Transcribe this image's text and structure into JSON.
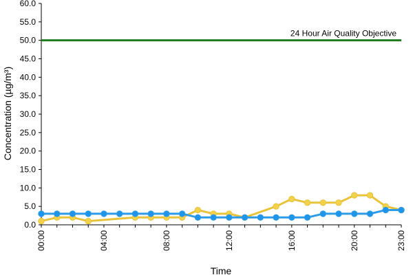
{
  "chart_data": {
    "type": "line",
    "title": "",
    "xlabel": "Time",
    "ylabel": "Concentration (µg/m³)",
    "ylim": [
      0,
      60
    ],
    "y_ticks": [
      "0.0",
      "5.0",
      "10.0",
      "15.0",
      "20.0",
      "25.0",
      "30.0",
      "35.0",
      "40.0",
      "45.0",
      "50.0",
      "55.0",
      "60.0"
    ],
    "x_ticks": [
      "00:00",
      "04:00",
      "08:00",
      "12:00",
      "16:00",
      "20:00",
      "23:00"
    ],
    "x_tick_hours": [
      0,
      4,
      8,
      12,
      16,
      20,
      23
    ],
    "x": [
      0,
      1,
      2,
      3,
      4,
      5,
      6,
      7,
      8,
      9,
      10,
      11,
      12,
      13,
      14,
      15,
      16,
      17,
      18,
      19,
      20,
      21,
      22,
      23
    ],
    "grid": false,
    "objective": {
      "label": "24 Hour Air Quality Objective",
      "value": 50,
      "color": "#1e7b1e"
    },
    "series": [
      {
        "color": "#e8c33a",
        "marker_fill": "#f2d24a",
        "values": [
          1,
          2,
          2,
          1,
          null,
          null,
          2,
          2,
          2,
          2,
          4,
          3,
          3,
          2,
          null,
          5,
          7,
          6,
          6,
          6,
          8,
          8,
          5,
          4
        ]
      },
      {
        "color": "#2d9be8",
        "marker_fill": "#1f95ea",
        "values": [
          3,
          3,
          3,
          3,
          3,
          3,
          3,
          3,
          3,
          3,
          2,
          2,
          2,
          2,
          2,
          2,
          2,
          2,
          3,
          3,
          3,
          3,
          4,
          4
        ]
      }
    ]
  }
}
